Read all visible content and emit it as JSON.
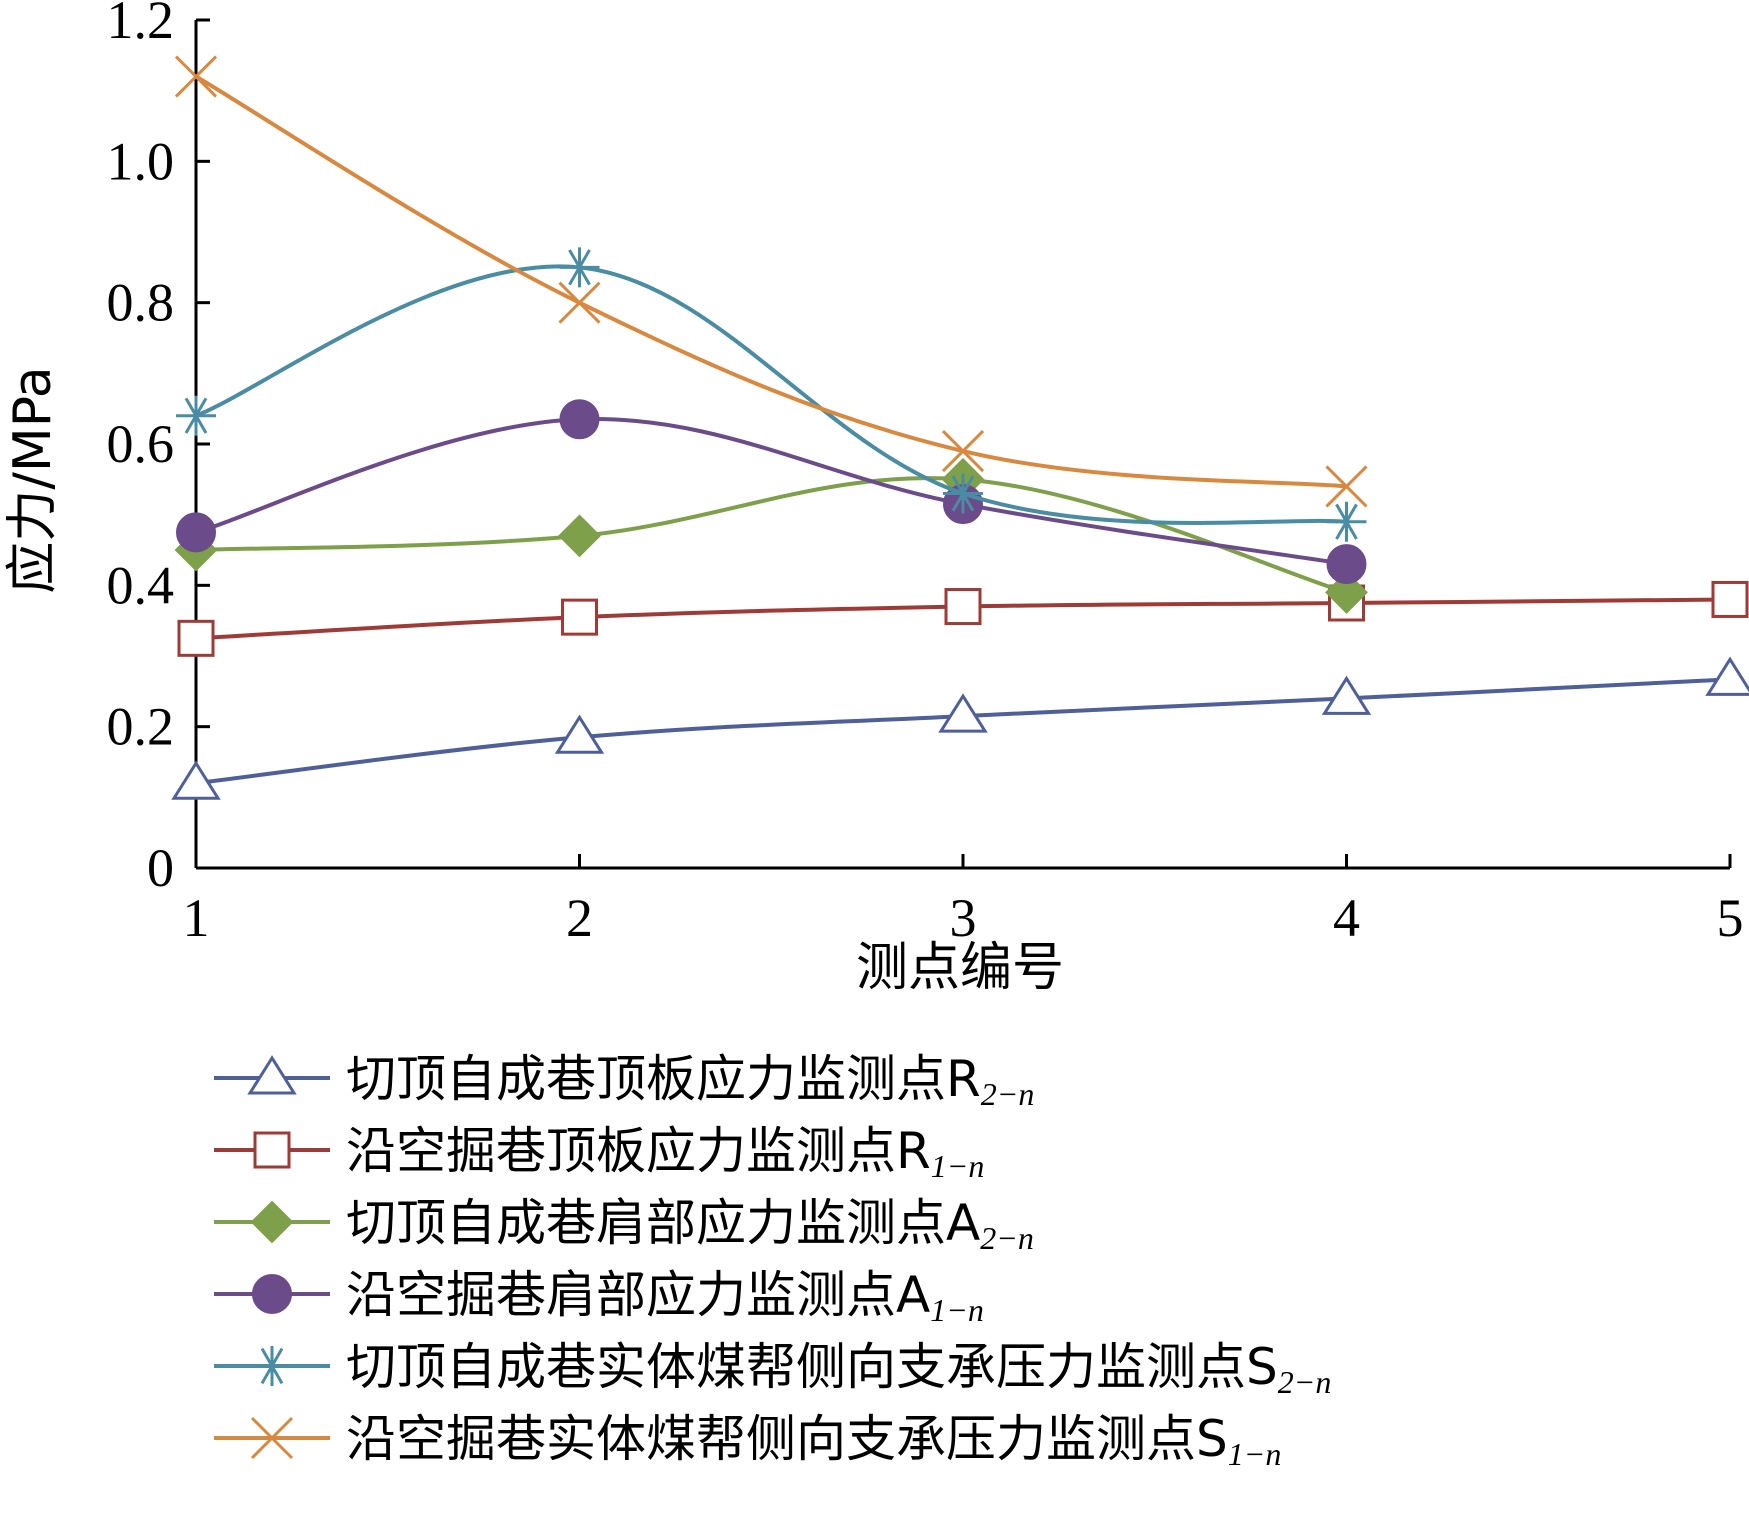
{
  "chart_data": {
    "type": "line",
    "xlabel": "测点编号",
    "ylabel": "应力/MPa",
    "xlim": [
      1,
      5
    ],
    "ylim": [
      0,
      1.2
    ],
    "xticks": [
      "1",
      "2",
      "3",
      "4",
      "5"
    ],
    "yticks": [
      "0",
      "0.2",
      "0.4",
      "0.6",
      "0.8",
      "1.0",
      "1.2"
    ],
    "grid": false,
    "legend_position": "bottom",
    "series": [
      {
        "name": "切顶自成巷顶板应力监测点R",
        "sub": "2−n",
        "marker": "triangle",
        "color": "#4e5f9a",
        "x": [
          1,
          2,
          3,
          4,
          5
        ],
        "y": [
          0.12,
          0.185,
          0.215,
          0.24,
          0.267
        ]
      },
      {
        "name": "沿空掘巷顶板应力监测点R",
        "sub": "1−n",
        "marker": "square",
        "color": "#9e3b37",
        "x": [
          1,
          2,
          3,
          4,
          5
        ],
        "y": [
          0.325,
          0.355,
          0.37,
          0.375,
          0.38
        ]
      },
      {
        "name": "切顶自成巷肩部应力监测点A",
        "sub": "2−n",
        "marker": "diamond",
        "color": "#7ea04a",
        "x": [
          1,
          2,
          3,
          4
        ],
        "y": [
          0.45,
          0.47,
          0.55,
          0.39
        ]
      },
      {
        "name": "沿空掘巷肩部应力监测点A",
        "sub": "1−n",
        "marker": "circle",
        "color": "#6b4b8a",
        "x": [
          1,
          2,
          3,
          4
        ],
        "y": [
          0.475,
          0.635,
          0.515,
          0.43
        ]
      },
      {
        "name": "切顶自成巷实体煤帮侧向支承压力监测点S",
        "sub": "2−n",
        "marker": "star",
        "color": "#4a8ca3",
        "x": [
          1,
          2,
          3,
          4
        ],
        "y": [
          0.64,
          0.85,
          0.53,
          0.49
        ]
      },
      {
        "name": "沿空掘巷实体煤帮侧向支承压力监测点S",
        "sub": "1−n",
        "marker": "x",
        "color": "#d9893f",
        "x": [
          1,
          2,
          3,
          4
        ],
        "y": [
          1.12,
          0.8,
          0.59,
          0.54
        ]
      }
    ]
  }
}
